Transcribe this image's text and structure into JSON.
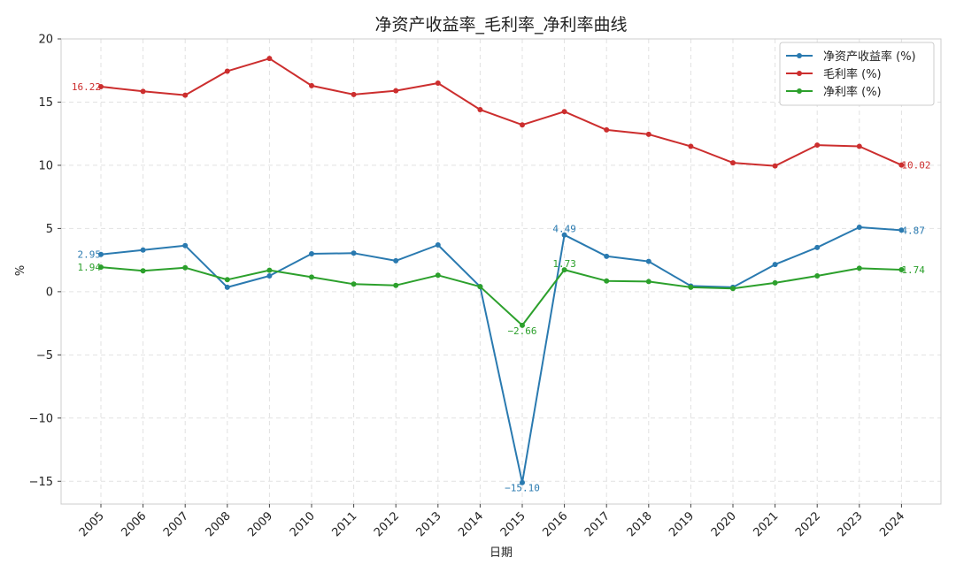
{
  "chart_data": {
    "type": "line",
    "title": "净资产收益率_毛利率_净利率曲线",
    "xlabel": "日期",
    "ylabel": "%",
    "categories": [
      "2005",
      "2006",
      "2007",
      "2008",
      "2009",
      "2010",
      "2011",
      "2012",
      "2013",
      "2014",
      "2015",
      "2016",
      "2017",
      "2018",
      "2019",
      "2020",
      "2021",
      "2022",
      "2023",
      "2024"
    ],
    "ylim": [
      -16.8,
      20
    ],
    "yticks": [
      20,
      15,
      10,
      5,
      0,
      -5,
      -10,
      -15
    ],
    "ytick_labels": [
      "20",
      "15",
      "10",
      "5",
      "0",
      "−5",
      "−10",
      "−15"
    ],
    "grid": true,
    "legend_position": "top-right",
    "series": [
      {
        "name": "净资产收益率 (%)",
        "color": "#2a7ab0",
        "values": [
          2.95,
          3.3,
          3.65,
          0.35,
          1.25,
          3.0,
          3.05,
          2.45,
          3.7,
          0.4,
          -15.1,
          4.49,
          2.8,
          2.4,
          0.45,
          0.35,
          2.15,
          3.5,
          5.1,
          4.87
        ],
        "labels": [
          {
            "index": 0,
            "text": "2.95",
            "pos": "left"
          },
          {
            "index": 10,
            "text": "−15.10",
            "pos": "below"
          },
          {
            "index": 11,
            "text": "4.49",
            "pos": "above"
          },
          {
            "index": 19,
            "text": "4.87",
            "pos": "right"
          }
        ]
      },
      {
        "name": "毛利率 (%)",
        "color": "#cc2e2e",
        "values": [
          16.22,
          15.85,
          15.55,
          17.45,
          18.45,
          16.3,
          15.6,
          15.9,
          16.5,
          14.4,
          13.2,
          14.25,
          12.8,
          12.45,
          11.5,
          10.2,
          9.95,
          11.6,
          11.5,
          10.02
        ],
        "labels": [
          {
            "index": 0,
            "text": "16.22",
            "pos": "left"
          },
          {
            "index": 19,
            "text": "10.02",
            "pos": "right"
          }
        ]
      },
      {
        "name": "净利率 (%)",
        "color": "#2ca02c",
        "values": [
          1.94,
          1.65,
          1.9,
          0.95,
          1.7,
          1.15,
          0.6,
          0.5,
          1.3,
          0.4,
          -2.66,
          1.73,
          0.85,
          0.8,
          0.35,
          0.25,
          0.7,
          1.25,
          1.85,
          1.74
        ],
        "labels": [
          {
            "index": 0,
            "text": "1.94",
            "pos": "left"
          },
          {
            "index": 10,
            "text": "−2.66",
            "pos": "below"
          },
          {
            "index": 11,
            "text": "1.73",
            "pos": "above"
          },
          {
            "index": 19,
            "text": "1.74",
            "pos": "right"
          }
        ]
      }
    ]
  }
}
